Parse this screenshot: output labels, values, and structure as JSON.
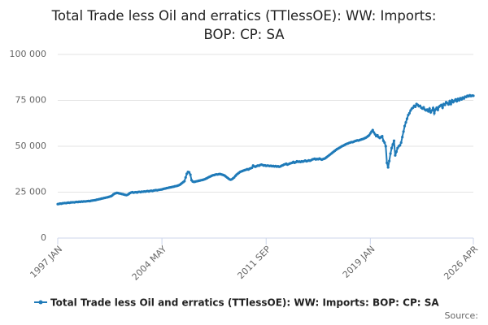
{
  "chart_data": {
    "type": "line",
    "title": "Total Trade less Oil and erratics (TTlessOE): WW: Imports: BOP: CP: SA",
    "source": "Source:",
    "categories": [
      "1997 JAN",
      null,
      null,
      null,
      null,
      null,
      null,
      null,
      null,
      null,
      null,
      null,
      null,
      null,
      null,
      null,
      null,
      null,
      null,
      null,
      null,
      null,
      null,
      null,
      null,
      null,
      null,
      null,
      null,
      null,
      null,
      null,
      null,
      null,
      null,
      null,
      null,
      null,
      null,
      null,
      null,
      null,
      null,
      null,
      null,
      null,
      null,
      null,
      null,
      null,
      null,
      null,
      null,
      null,
      null,
      null,
      null,
      null,
      null,
      null,
      null,
      null,
      null,
      null,
      null,
      null,
      null,
      null,
      null,
      null,
      null,
      null,
      null,
      null,
      null,
      null,
      null,
      null,
      null,
      null,
      null,
      null,
      null,
      null,
      null,
      null,
      null,
      null,
      "2004 MAY",
      null,
      null,
      null,
      null,
      null,
      null,
      null,
      null,
      null,
      null,
      null,
      null,
      null,
      null,
      null,
      null,
      null,
      null,
      null,
      null,
      null,
      null,
      null,
      null,
      null,
      null,
      null,
      null,
      null,
      null,
      null,
      null,
      null,
      null,
      null,
      null,
      null,
      null,
      null,
      null,
      null,
      null,
      null,
      null,
      null,
      null,
      null,
      null,
      null,
      null,
      null,
      null,
      null,
      null,
      null,
      null,
      null,
      null,
      null,
      null,
      null,
      null,
      null,
      null,
      null,
      null,
      null,
      null,
      null,
      null,
      null,
      null,
      null,
      null,
      null,
      null,
      null,
      null,
      null,
      null,
      null,
      null,
      null,
      null,
      null,
      null,
      null,
      "2011 SEP",
      null,
      null,
      null,
      null,
      null,
      null,
      null,
      null,
      null,
      null,
      null,
      null,
      null,
      null,
      null,
      null,
      null,
      null,
      null,
      null,
      null,
      null,
      null,
      null,
      null,
      null,
      null,
      null,
      null,
      null,
      null,
      null,
      null,
      null,
      null,
      null,
      null,
      null,
      null,
      null,
      null,
      null,
      null,
      null,
      null,
      null,
      null,
      null,
      null,
      null,
      null,
      null,
      null,
      null,
      null,
      null,
      null,
      null,
      null,
      null,
      null,
      null,
      null,
      null,
      null,
      null,
      null,
      null,
      null,
      null,
      null,
      null,
      null,
      null,
      null,
      null,
      null,
      null,
      null,
      null,
      null,
      null,
      null,
      null,
      null,
      null,
      null,
      "2019 JAN",
      null,
      null,
      null,
      null,
      null,
      null,
      null,
      null,
      null,
      null,
      null,
      null,
      null,
      null,
      null,
      null,
      null,
      null,
      null,
      null,
      null,
      null,
      null,
      null,
      null,
      null,
      null,
      null,
      null,
      null,
      null,
      null,
      null,
      null,
      null,
      null,
      null,
      null,
      null,
      null,
      null,
      null,
      null,
      null,
      null,
      null,
      null,
      null,
      null,
      null,
      null,
      null,
      null,
      null,
      null,
      null,
      null,
      null,
      null,
      null,
      null,
      null,
      null,
      null,
      null,
      null,
      null,
      null,
      null,
      null,
      null,
      null,
      null,
      null,
      null,
      null,
      null,
      null,
      null,
      null,
      null,
      null,
      null,
      null,
      null,
      null,
      "2026 APR"
    ],
    "series": [
      {
        "name": "Total Trade less Oil and erratics (TTlessOE): WW: Imports: BOP: CP: SA",
        "color": "#1f7ab8",
        "values": [
          18500,
          18600,
          18800,
          18700,
          18900,
          19000,
          19100,
          19000,
          19200,
          19300,
          19200,
          19400,
          19400,
          19500,
          19400,
          19600,
          19700,
          19600,
          19800,
          19700,
          19900,
          19800,
          20000,
          19900,
          20000,
          20100,
          20200,
          20100,
          20300,
          20400,
          20500,
          20600,
          20700,
          20900,
          21000,
          21200,
          21300,
          21500,
          21600,
          21800,
          21900,
          22100,
          22200,
          22400,
          22600,
          22800,
          23200,
          23800,
          24200,
          24400,
          24600,
          24500,
          24300,
          24200,
          24000,
          23900,
          23700,
          23500,
          23400,
          23600,
          24000,
          24500,
          24800,
          25000,
          24700,
          24900,
          25000,
          24800,
          25100,
          25200,
          25000,
          25300,
          25200,
          25400,
          25300,
          25500,
          25600,
          25400,
          25700,
          25800,
          25600,
          25900,
          26000,
          26100,
          26000,
          26200,
          26300,
          26400,
          26500,
          26700,
          26900,
          27000,
          27200,
          27300,
          27500,
          27600,
          27700,
          27900,
          28000,
          28200,
          28300,
          28500,
          28700,
          29000,
          29500,
          30000,
          30500,
          31000,
          33000,
          35000,
          36000,
          35800,
          34500,
          31500,
          30800,
          30600,
          30700,
          30900,
          31000,
          31200,
          31300,
          31500,
          31600,
          31800,
          32000,
          32300,
          32600,
          33000,
          33300,
          33600,
          33900,
          34200,
          34300,
          34500,
          34700,
          34600,
          34800,
          34900,
          34700,
          34500,
          34300,
          34000,
          33500,
          33000,
          32500,
          32000,
          31800,
          32000,
          32500,
          33000,
          33800,
          34500,
          35000,
          35500,
          36000,
          36300,
          36500,
          36800,
          37000,
          37200,
          37500,
          37300,
          37800,
          38000,
          38300,
          39500,
          39000,
          38800,
          39200,
          39500,
          39400,
          39800,
          40000,
          39800,
          39500,
          39600,
          39300,
          39500,
          39400,
          39200,
          39400,
          39100,
          39300,
          39000,
          39200,
          38900,
          39100,
          38800,
          39000,
          39400,
          39600,
          40000,
          40200,
          40500,
          40000,
          40300,
          40600,
          40800,
          41000,
          41500,
          41000,
          41300,
          41800,
          41500,
          41700,
          41400,
          41800,
          41600,
          41900,
          42200,
          41800,
          42000,
          42300,
          42100,
          42400,
          42800,
          43000,
          43200,
          42800,
          43100,
          42900,
          43300,
          43000,
          42700,
          43000,
          43200,
          43500,
          44000,
          44500,
          45000,
          45500,
          46000,
          46500,
          47000,
          47500,
          48000,
          48500,
          48800,
          49200,
          49600,
          50000,
          50300,
          50600,
          51000,
          51300,
          51500,
          51800,
          52000,
          52300,
          52200,
          52500,
          52800,
          53000,
          53200,
          53100,
          53400,
          53600,
          53800,
          54000,
          54300,
          54600,
          55000,
          55500,
          56000,
          57000,
          58000,
          58800,
          57500,
          56500,
          55500,
          56000,
          55000,
          54500,
          55000,
          55500,
          53000,
          52000,
          50000,
          41000,
          38500,
          42000,
          46000,
          49000,
          51000,
          53000,
          45000,
          47000,
          49000,
          50000,
          50500,
          52000,
          55000,
          58000,
          61000,
          63000,
          65000,
          67000,
          68000,
          69500,
          70500,
          71000,
          72000,
          71500,
          73000,
          72500,
          71800,
          72000,
          71000,
          70500,
          71200,
          70000,
          69500,
          70000,
          69000,
          70500,
          68500,
          69500,
          70800,
          68000,
          70000,
          71000,
          69800,
          71500,
          72000,
          72500,
          71000,
          73000,
          72500,
          74000,
          73500,
          72800,
          74500,
          73000,
          75000,
          74000,
          74800,
          75500,
          74500,
          75800,
          75000,
          76200,
          75500,
          76500,
          76000,
          77000,
          76800,
          77500,
          77200,
          77800,
          77300,
          77600,
          77500
        ]
      }
    ],
    "ylim": [
      0,
      100000
    ],
    "yticks": [
      0,
      {
        "value": 25000,
        "label": "25 000"
      },
      {
        "value": 50000,
        "label": "50 000"
      },
      {
        "value": 75000,
        "label": "75 000"
      },
      {
        "value": 100000,
        "label": "100 000"
      }
    ],
    "grid": true
  }
}
